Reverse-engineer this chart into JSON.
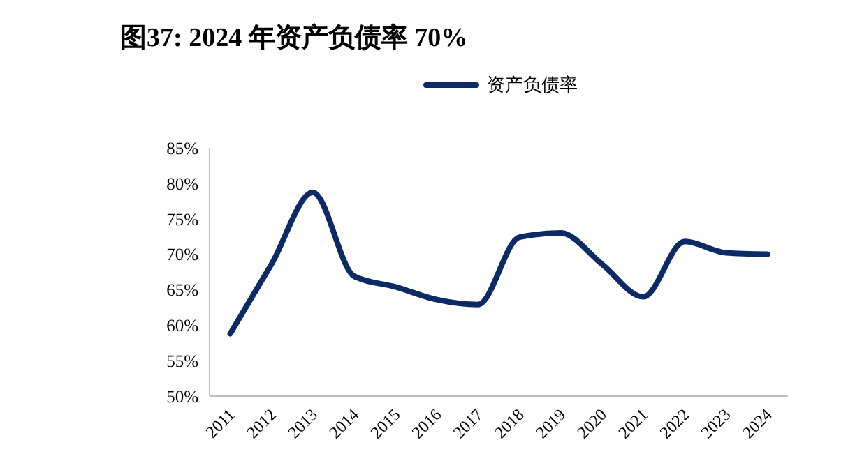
{
  "chart_data": {
    "type": "line",
    "title": "图37:  2024 年资产负债率 70%",
    "categories": [
      "2011",
      "2012",
      "2013",
      "2014",
      "2015",
      "2016",
      "2017",
      "2018",
      "2019",
      "2020",
      "2021",
      "2022",
      "2023",
      "2024"
    ],
    "series": [
      {
        "name": "资产负债率",
        "color": "#0b2a66",
        "values": [
          58.8,
          68.6,
          78.7,
          66.9,
          65.4,
          63.6,
          62.9,
          72.4,
          73.0,
          68.6,
          64.0,
          71.8,
          70.2,
          70.0
        ]
      }
    ],
    "ylim": [
      50,
      85
    ],
    "yticks": [
      {
        "value": 50,
        "label": "50%"
      },
      {
        "value": 55,
        "label": "55%"
      },
      {
        "value": 60,
        "label": "60%"
      },
      {
        "value": 65,
        "label": "65%"
      },
      {
        "value": 70,
        "label": "70%"
      },
      {
        "value": 75,
        "label": "75%"
      },
      {
        "value": 80,
        "label": "80%"
      },
      {
        "value": 85,
        "label": "85%"
      }
    ],
    "grid": false,
    "legend": "top",
    "marker": "none",
    "line_style": "solid"
  }
}
